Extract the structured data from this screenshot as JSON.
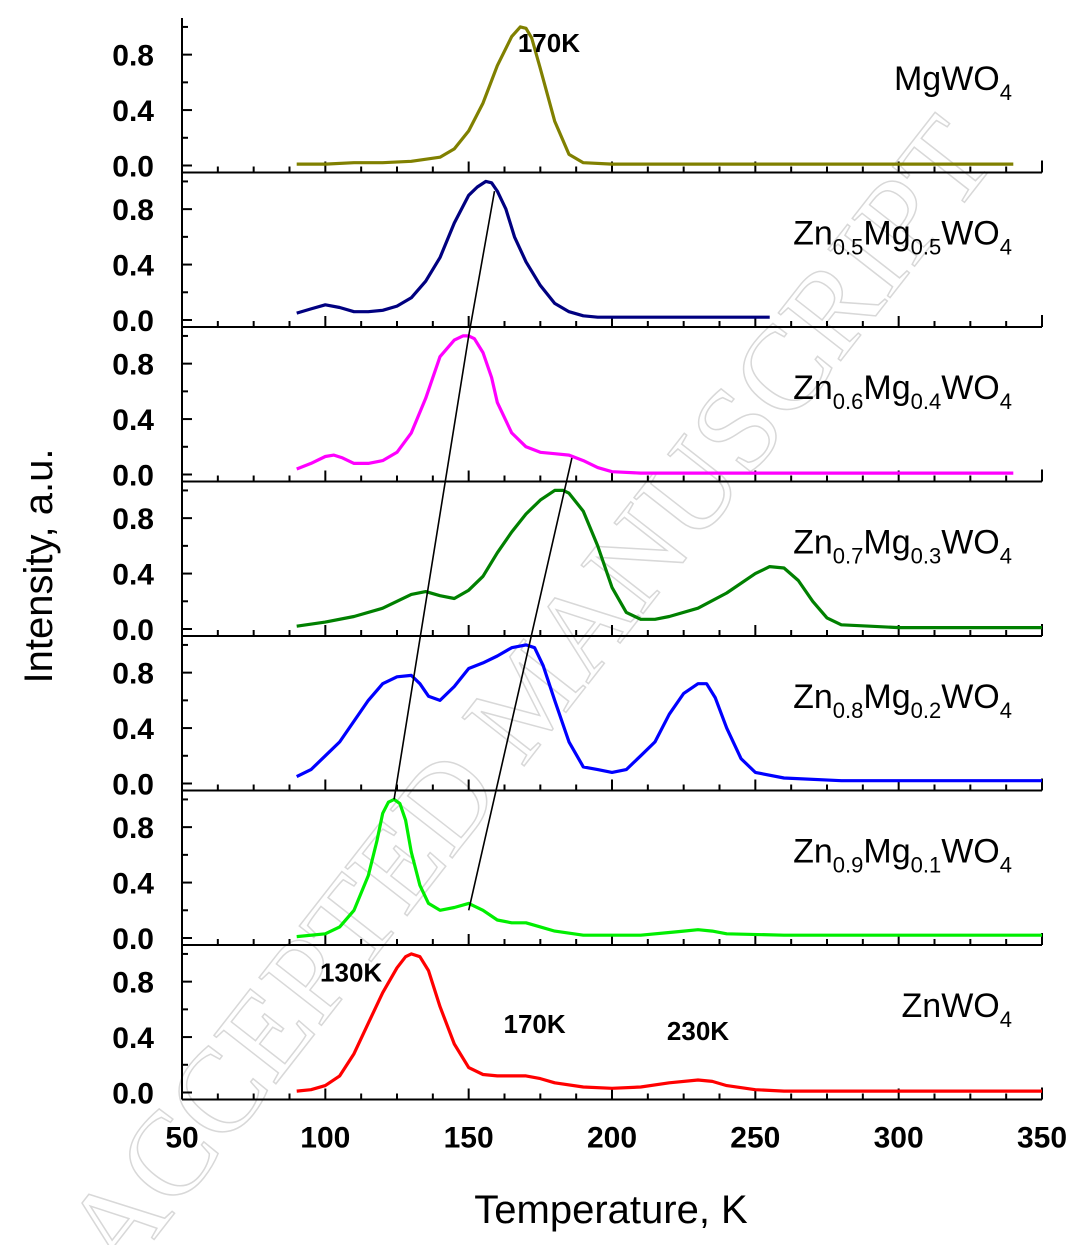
{
  "chart_data": {
    "type": "line",
    "xlabel": "Temperature, K",
    "ylabel": "Intensity, a.u.",
    "xlim": [
      50,
      350
    ],
    "xticks": [
      50,
      100,
      150,
      200,
      250,
      300,
      350
    ],
    "ylim": [
      0,
      1.05
    ],
    "yticks": [
      "0.0",
      "0.4",
      "0.8"
    ],
    "watermark": "ACCEPTED MANUSCRIPT",
    "panels": [
      {
        "id": "mgwo4",
        "color": "#808000",
        "label": {
          "parts": [
            {
              "t": "MgWO"
            },
            {
              "t": "4",
              "sub": true
            }
          ]
        },
        "annotations": [
          {
            "text": "170K",
            "x": 178,
            "y": 0.82
          }
        ],
        "x": [
          90,
          100,
          110,
          120,
          130,
          140,
          145,
          150,
          155,
          160,
          165,
          168,
          170,
          172,
          175,
          180,
          185,
          190,
          200,
          220,
          250,
          300,
          340
        ],
        "y": [
          0.01,
          0.01,
          0.02,
          0.02,
          0.03,
          0.06,
          0.12,
          0.25,
          0.45,
          0.72,
          0.93,
          1.0,
          0.99,
          0.92,
          0.7,
          0.32,
          0.08,
          0.02,
          0.01,
          0.01,
          0.01,
          0.01,
          0.01
        ]
      },
      {
        "id": "zn05",
        "color": "#000080",
        "label": {
          "parts": [
            {
              "t": "Zn"
            },
            {
              "t": "0.5",
              "sub": true
            },
            {
              "t": "Mg"
            },
            {
              "t": "0.5",
              "sub": true
            },
            {
              "t": "WO"
            },
            {
              "t": "4",
              "sub": true
            }
          ]
        },
        "annotations": [],
        "x": [
          90,
          95,
          100,
          105,
          110,
          115,
          120,
          125,
          130,
          135,
          140,
          145,
          150,
          153,
          156,
          158,
          160,
          163,
          166,
          170,
          175,
          180,
          185,
          190,
          195,
          200,
          210,
          220,
          240,
          255
        ],
        "y": [
          0.05,
          0.08,
          0.11,
          0.09,
          0.06,
          0.06,
          0.07,
          0.1,
          0.16,
          0.28,
          0.45,
          0.7,
          0.9,
          0.96,
          1.0,
          0.99,
          0.93,
          0.8,
          0.6,
          0.42,
          0.25,
          0.12,
          0.06,
          0.03,
          0.02,
          0.02,
          0.02,
          0.02,
          0.02,
          0.02
        ]
      },
      {
        "id": "zn06",
        "color": "#ff00ff",
        "label": {
          "parts": [
            {
              "t": "Zn"
            },
            {
              "t": "0.6",
              "sub": true
            },
            {
              "t": "Mg"
            },
            {
              "t": "0.4",
              "sub": true
            },
            {
              "t": "WO"
            },
            {
              "t": "4",
              "sub": true
            }
          ]
        },
        "annotations": [],
        "x": [
          90,
          95,
          100,
          103,
          106,
          110,
          115,
          120,
          125,
          130,
          135,
          140,
          145,
          148,
          150,
          152,
          155,
          158,
          160,
          165,
          170,
          175,
          180,
          185,
          190,
          195,
          200,
          210,
          250,
          300,
          340
        ],
        "y": [
          0.04,
          0.08,
          0.13,
          0.14,
          0.12,
          0.08,
          0.08,
          0.1,
          0.16,
          0.3,
          0.55,
          0.85,
          0.97,
          1.0,
          1.0,
          0.98,
          0.88,
          0.7,
          0.52,
          0.3,
          0.2,
          0.16,
          0.15,
          0.14,
          0.1,
          0.05,
          0.02,
          0.01,
          0.01,
          0.01,
          0.01
        ]
      },
      {
        "id": "zn07",
        "color": "#008000",
        "label": {
          "parts": [
            {
              "t": "Zn"
            },
            {
              "t": "0.7",
              "sub": true
            },
            {
              "t": "Mg"
            },
            {
              "t": "0.3",
              "sub": true
            },
            {
              "t": "WO"
            },
            {
              "t": "4",
              "sub": true
            }
          ]
        },
        "annotations": [],
        "x": [
          90,
          100,
          110,
          120,
          125,
          130,
          135,
          140,
          145,
          150,
          155,
          160,
          165,
          170,
          175,
          180,
          183,
          185,
          190,
          195,
          200,
          205,
          210,
          215,
          220,
          230,
          240,
          250,
          255,
          260,
          265,
          270,
          275,
          280,
          290,
          300,
          350
        ],
        "y": [
          0.02,
          0.05,
          0.09,
          0.15,
          0.2,
          0.25,
          0.27,
          0.24,
          0.22,
          0.28,
          0.38,
          0.55,
          0.7,
          0.83,
          0.93,
          1.0,
          1.0,
          0.98,
          0.85,
          0.6,
          0.3,
          0.12,
          0.07,
          0.07,
          0.09,
          0.15,
          0.26,
          0.4,
          0.45,
          0.44,
          0.35,
          0.2,
          0.08,
          0.03,
          0.02,
          0.01,
          0.01
        ]
      },
      {
        "id": "zn08",
        "color": "#0000ff",
        "label": {
          "parts": [
            {
              "t": "Zn"
            },
            {
              "t": "0.8",
              "sub": true
            },
            {
              "t": "Mg"
            },
            {
              "t": "0.2",
              "sub": true
            },
            {
              "t": "WO"
            },
            {
              "t": "4",
              "sub": true
            }
          ]
        },
        "annotations": [],
        "x": [
          90,
          95,
          100,
          105,
          110,
          115,
          120,
          125,
          130,
          133,
          136,
          140,
          145,
          150,
          155,
          160,
          165,
          170,
          173,
          176,
          180,
          185,
          190,
          195,
          200,
          205,
          210,
          215,
          220,
          225,
          230,
          233,
          236,
          240,
          245,
          250,
          260,
          280,
          300,
          350
        ],
        "y": [
          0.05,
          0.1,
          0.2,
          0.3,
          0.45,
          0.6,
          0.72,
          0.77,
          0.78,
          0.72,
          0.63,
          0.6,
          0.7,
          0.83,
          0.87,
          0.92,
          0.98,
          1.0,
          0.98,
          0.85,
          0.6,
          0.3,
          0.12,
          0.1,
          0.08,
          0.1,
          0.2,
          0.3,
          0.5,
          0.65,
          0.72,
          0.72,
          0.62,
          0.4,
          0.18,
          0.08,
          0.04,
          0.02,
          0.02,
          0.02
        ]
      },
      {
        "id": "zn09",
        "color": "#00ee00",
        "label": {
          "parts": [
            {
              "t": "Zn"
            },
            {
              "t": "0.9",
              "sub": true
            },
            {
              "t": "Mg"
            },
            {
              "t": "0.1",
              "sub": true
            },
            {
              "t": "WO"
            },
            {
              "t": "4",
              "sub": true
            }
          ]
        },
        "annotations": [],
        "x": [
          90,
          100,
          105,
          110,
          115,
          118,
          120,
          122,
          124,
          126,
          128,
          130,
          133,
          136,
          140,
          145,
          150,
          155,
          160,
          165,
          170,
          175,
          180,
          190,
          200,
          210,
          220,
          225,
          230,
          235,
          240,
          260,
          300,
          350
        ],
        "y": [
          0.01,
          0.03,
          0.08,
          0.2,
          0.45,
          0.7,
          0.9,
          0.98,
          1.0,
          0.97,
          0.85,
          0.62,
          0.38,
          0.25,
          0.2,
          0.22,
          0.25,
          0.2,
          0.13,
          0.11,
          0.11,
          0.08,
          0.05,
          0.02,
          0.02,
          0.02,
          0.04,
          0.05,
          0.06,
          0.05,
          0.03,
          0.02,
          0.02,
          0.02
        ]
      },
      {
        "id": "znwo4",
        "color": "#ff0000",
        "label": {
          "parts": [
            {
              "t": "ZnWO"
            },
            {
              "t": "4",
              "sub": true
            }
          ]
        },
        "annotations": [
          {
            "text": "130K",
            "x": 109,
            "y": 0.8
          },
          {
            "text": "170K",
            "x": 173,
            "y": 0.43
          },
          {
            "text": "230K",
            "x": 230,
            "y": 0.38
          }
        ],
        "x": [
          90,
          95,
          100,
          105,
          110,
          115,
          120,
          125,
          128,
          130,
          133,
          136,
          140,
          145,
          150,
          155,
          160,
          165,
          170,
          175,
          180,
          190,
          200,
          210,
          220,
          230,
          235,
          240,
          250,
          260,
          300,
          350
        ],
        "y": [
          0.01,
          0.02,
          0.05,
          0.12,
          0.28,
          0.5,
          0.72,
          0.9,
          0.98,
          1.0,
          0.98,
          0.88,
          0.62,
          0.35,
          0.18,
          0.13,
          0.12,
          0.12,
          0.12,
          0.1,
          0.07,
          0.04,
          0.03,
          0.04,
          0.07,
          0.09,
          0.08,
          0.05,
          0.02,
          0.01,
          0.01,
          0.01
        ]
      }
    ],
    "guide_lines": [
      {
        "points": [
          [
            159,
            0.93,
            1
          ],
          [
            150,
            1.0,
            2
          ],
          [
            124,
            1.0,
            5
          ]
        ]
      },
      {
        "points": [
          [
            186,
            0.12,
            2
          ],
          [
            150,
            0.2,
            5
          ]
        ]
      }
    ]
  }
}
